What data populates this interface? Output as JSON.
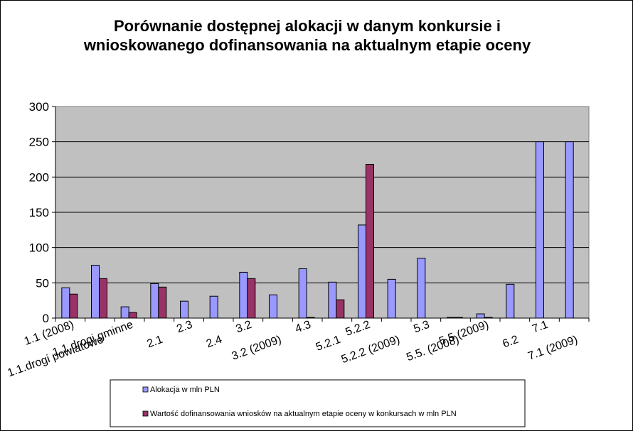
{
  "chart_data": {
    "type": "bar",
    "title_lines": [
      "Porównanie dostępnej alokacji w danym  konkursie i",
      "wnioskowanego dofinansowania na aktualnym etapie oceny"
    ],
    "categories": [
      "1.1 (2008)",
      "1.1.drogi powiatowe",
      "1.1.drogi gminne",
      "2.1",
      "2.3",
      "2.4",
      "3.2",
      "3.2 (2009)",
      "4.3",
      "5.2.1",
      "5.2.2",
      "5.2.2 (2009)",
      "5.3",
      "5.5. (2008)",
      "5.5 (2009)",
      "6.2",
      "7.1",
      "7.1 (2009)"
    ],
    "series": [
      {
        "name": "Alokacja w mln PLN",
        "color": "#9999ff",
        "values": [
          43,
          75,
          16,
          49,
          24,
          31,
          65,
          33,
          70,
          51,
          132,
          55,
          85,
          1,
          6,
          48,
          250,
          250
        ]
      },
      {
        "name": "Wartość dofinansowania wniosków na aktualnym etapie oceny w konkursach w mln PLN",
        "color": "#993366",
        "values": [
          34,
          56,
          8,
          44,
          0,
          0,
          56,
          0,
          0.5,
          26,
          218,
          0,
          0,
          0.5,
          1,
          0,
          0,
          0
        ]
      }
    ],
    "ylim": [
      0,
      300
    ],
    "yticks": [
      0,
      50,
      100,
      150,
      200,
      250,
      300
    ],
    "grid": true,
    "plot_background": "#c0c0c0",
    "legend_position": "bottom"
  }
}
